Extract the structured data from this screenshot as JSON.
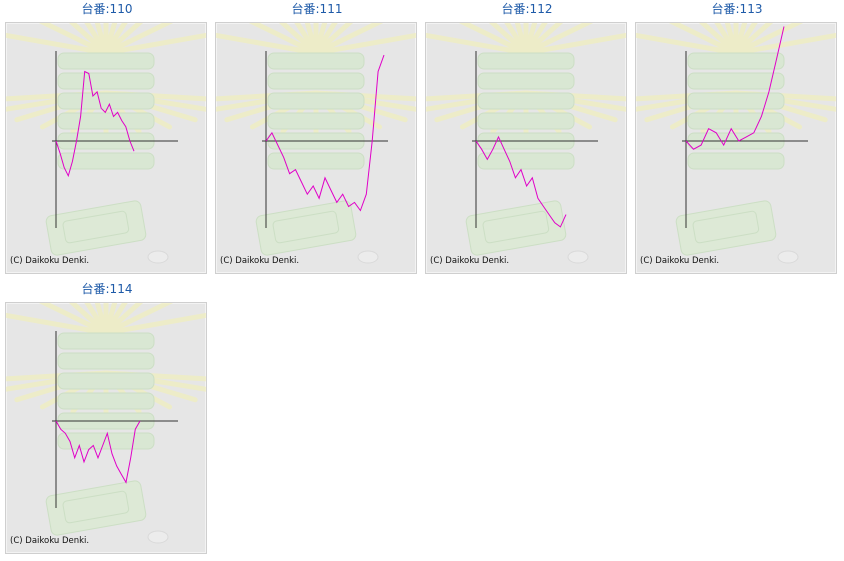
{
  "machines": [
    {
      "title": "台番:110",
      "copyright": "(C) Daikoku Denki.",
      "chart_data": {
        "type": "line",
        "title": "",
        "xlabel": "",
        "ylabel": "",
        "series": [
          {
            "values": [
              0,
              -300,
              -650,
              -850,
              -500,
              0,
              600,
              1700,
              1650,
              1100,
              1200,
              800,
              700,
              900,
              600,
              700,
              500,
              350,
              0,
              -250
            ]
          }
        ]
      }
    },
    {
      "title": "台番:111",
      "copyright": "(C) Daikoku Denki.",
      "chart_data": {
        "type": "line",
        "title": "",
        "xlabel": "",
        "ylabel": "",
        "series": [
          {
            "values": [
              0,
              200,
              -100,
              -400,
              -800,
              -700,
              -1000,
              -1300,
              -1100,
              -1400,
              -900,
              -1200,
              -1500,
              -1300,
              -1600,
              -1500,
              -1700,
              -1300,
              0,
              1700,
              2100
            ]
          }
        ]
      }
    },
    {
      "title": "台番:112",
      "copyright": "(C) Daikoku Denki.",
      "chart_data": {
        "type": "line",
        "title": "",
        "xlabel": "",
        "ylabel": "",
        "series": [
          {
            "values": [
              0,
              -200,
              -450,
              -200,
              100,
              -200,
              -500,
              -900,
              -700,
              -1100,
              -900,
              -1400,
              -1600,
              -1800,
              -2000,
              -2100,
              -1800
            ]
          }
        ]
      }
    },
    {
      "title": "台番:113",
      "copyright": "(C) Daikoku Denki.",
      "chart_data": {
        "type": "line",
        "title": "",
        "xlabel": "",
        "ylabel": "",
        "series": [
          {
            "values": [
              0,
              -200,
              -100,
              300,
              200,
              -100,
              300,
              0,
              100,
              200,
              600,
              1200,
              2000,
              2800
            ]
          }
        ]
      }
    },
    {
      "title": "台番:114",
      "copyright": "(C) Daikoku Denki.",
      "chart_data": {
        "type": "line",
        "title": "",
        "xlabel": "",
        "ylabel": "",
        "series": [
          {
            "values": [
              0,
              -200,
              -300,
              -500,
              -900,
              -600,
              -1000,
              -700,
              -600,
              -900,
              -600,
              -300,
              -800,
              -1100,
              -1300,
              -1500,
              -900,
              -200,
              0
            ]
          }
        ]
      }
    }
  ],
  "colors": {
    "line": "#e000c8",
    "axis": "#333333",
    "panel_bg": "#e6e6e6",
    "title_link": "#1e5aa8"
  }
}
